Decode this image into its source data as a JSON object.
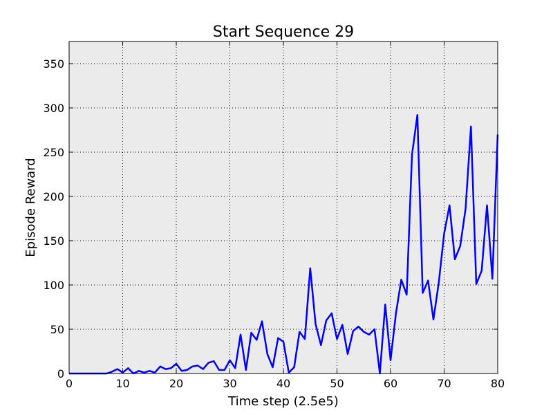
{
  "chart_data": {
    "type": "line",
    "title": "Start Sequence 29",
    "xlabel": "Time step (2.5e5)",
    "ylabel": "Episode Reward",
    "xlim": [
      0,
      80
    ],
    "ylim": [
      0,
      375
    ],
    "x_ticks": [
      0,
      10,
      20,
      30,
      40,
      50,
      60,
      70,
      80
    ],
    "y_ticks": [
      0,
      50,
      100,
      150,
      200,
      250,
      300,
      350
    ],
    "grid": true,
    "colors": {
      "line": "#0000ff",
      "plot_background": "#ebebeb",
      "grid": "#000000"
    },
    "series": [
      {
        "x": [
          0,
          1,
          2,
          3,
          4,
          5,
          6,
          7,
          8,
          9,
          10,
          11,
          12,
          13,
          14,
          15,
          16,
          17,
          18,
          19,
          20,
          21,
          22,
          23,
          24,
          25,
          26,
          27,
          28,
          29,
          30,
          31,
          32,
          33,
          34,
          35,
          36,
          37,
          38,
          39,
          40,
          41,
          42,
          43,
          44,
          45,
          46,
          47,
          48,
          49,
          50,
          51,
          52,
          53,
          54,
          55,
          56,
          57,
          58,
          59,
          60,
          61,
          62,
          63,
          64,
          65,
          66,
          67,
          68,
          69,
          70,
          71,
          72,
          73,
          74,
          75,
          76,
          77,
          78,
          79,
          80
        ],
        "values": [
          0,
          0,
          0,
          0,
          0,
          0,
          0,
          0,
          2,
          5,
          1,
          6,
          0,
          3,
          1,
          3,
          1,
          8,
          5,
          6,
          11,
          3,
          4,
          8,
          9,
          5,
          12,
          14,
          4,
          4,
          15,
          6,
          44,
          4,
          46,
          38,
          59,
          22,
          7,
          40,
          36,
          1,
          7,
          47,
          39,
          119,
          56,
          32,
          60,
          68,
          39,
          55,
          22,
          48,
          53,
          47,
          44,
          50,
          0,
          78,
          15,
          68,
          106,
          89,
          247,
          292,
          91,
          105,
          61,
          103,
          158,
          190,
          129,
          144,
          186,
          279,
          101,
          116,
          190,
          107,
          270
        ]
      }
    ]
  }
}
